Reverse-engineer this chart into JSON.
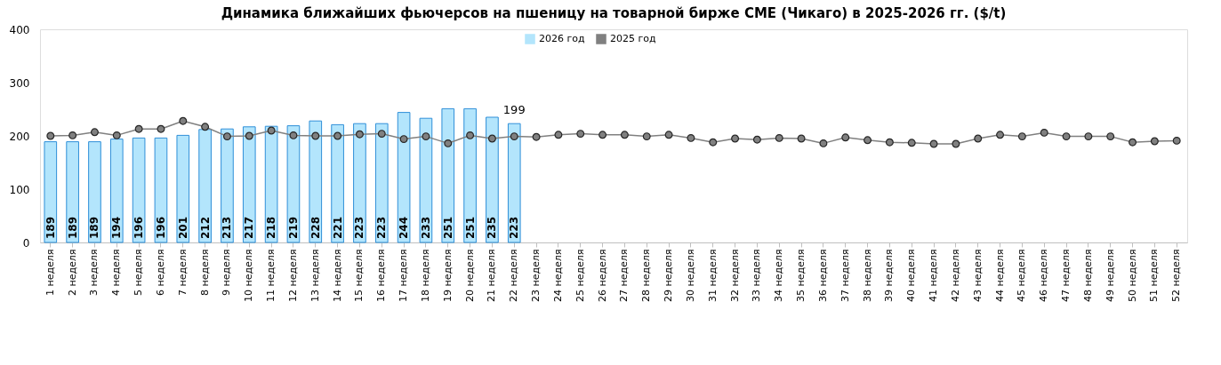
{
  "chart_data": {
    "type": "bar",
    "title": "Динамика ближайших фьючерсов на пшеницу на товарной бирже CME (Чикаго) в 2025-2026 гг. ($/t)",
    "categories": [
      "1 неделя",
      "2 неделя",
      "3 неделя",
      "4 неделя",
      "5 неделя",
      "6 неделя",
      "7 неделя",
      "8 неделя",
      "9 неделя",
      "10 неделя",
      "11 неделя",
      "12 неделя",
      "13 неделя",
      "14 неделя",
      "15 неделя",
      "16 неделя",
      "17 неделя",
      "18 неделя",
      "19 неделя",
      "20 неделя",
      "21 неделя",
      "22 неделя",
      "23 неделя",
      "24 неделя",
      "25 неделя",
      "26 неделя",
      "27 неделя",
      "28 неделя",
      "29 неделя",
      "30 неделя",
      "31 неделя",
      "32 неделя",
      "33 неделя",
      "34 неделя",
      "35 неделя",
      "36 неделя",
      "37 неделя",
      "38 неделя",
      "39 неделя",
      "40 неделя",
      "41 неделя",
      "42 неделя",
      "43 неделя",
      "44 неделя",
      "45 неделя",
      "46 неделя",
      "47 неделя",
      "48 неделя",
      "49 неделя",
      "50 неделя",
      "51 неделя",
      "52 неделя"
    ],
    "series": [
      {
        "name": "2026 год",
        "color": "#b3e5fc",
        "value_labels": [
          "189",
          "189",
          "189",
          "194",
          "196",
          "196",
          "201",
          "212",
          "213",
          "217",
          "218",
          "219",
          "228",
          "221",
          "223",
          "223",
          "244",
          "233",
          "251",
          "251",
          "235",
          "223",
          null,
          null,
          null,
          null,
          null,
          null,
          null,
          null,
          null,
          null,
          null,
          null,
          null,
          null,
          null,
          null,
          null,
          null,
          null,
          null,
          null,
          null,
          null,
          null,
          null,
          null,
          null,
          null,
          null,
          null
        ],
        "values": [
          189,
          189,
          189,
          194,
          196,
          196,
          201,
          212,
          213,
          217,
          218,
          219,
          228,
          221,
          223,
          223,
          244,
          233,
          251,
          251,
          235,
          223,
          null,
          null,
          null,
          null,
          null,
          null,
          null,
          null,
          null,
          null,
          null,
          null,
          null,
          null,
          null,
          null,
          null,
          null,
          null,
          null,
          null,
          null,
          null,
          null,
          null,
          null,
          null,
          null,
          null,
          null
        ]
      },
      {
        "name": "2025 год",
        "type": "line",
        "color": "#808080",
        "marker": "circle",
        "line_style": "solid",
        "value_labels": [
          null,
          null,
          null,
          null,
          null,
          null,
          null,
          null,
          null,
          null,
          null,
          null,
          null,
          null,
          null,
          null,
          null,
          null,
          null,
          null,
          null,
          "199",
          null,
          null,
          null,
          null,
          null,
          null,
          null,
          null,
          null,
          null,
          null,
          null,
          null,
          null,
          null,
          null,
          null,
          null,
          null,
          null,
          null,
          null,
          null,
          null,
          null,
          null,
          null,
          null,
          null,
          null
        ],
        "values": [
          200,
          201,
          207,
          201,
          213,
          213,
          228,
          217,
          199,
          200,
          210,
          201,
          200,
          200,
          203,
          204,
          194,
          199,
          186,
          201,
          195,
          199,
          198,
          202,
          204,
          202,
          202,
          199,
          202,
          196,
          188,
          195,
          193,
          196,
          195,
          186,
          197,
          192,
          188,
          187,
          185,
          185,
          195,
          202,
          199,
          206,
          199,
          199,
          199,
          188,
          190,
          191
        ]
      }
    ],
    "ylim": [
      0,
      400
    ],
    "yticks": [
      0,
      100,
      200,
      300,
      400
    ],
    "grid": false,
    "legend": "top"
  }
}
